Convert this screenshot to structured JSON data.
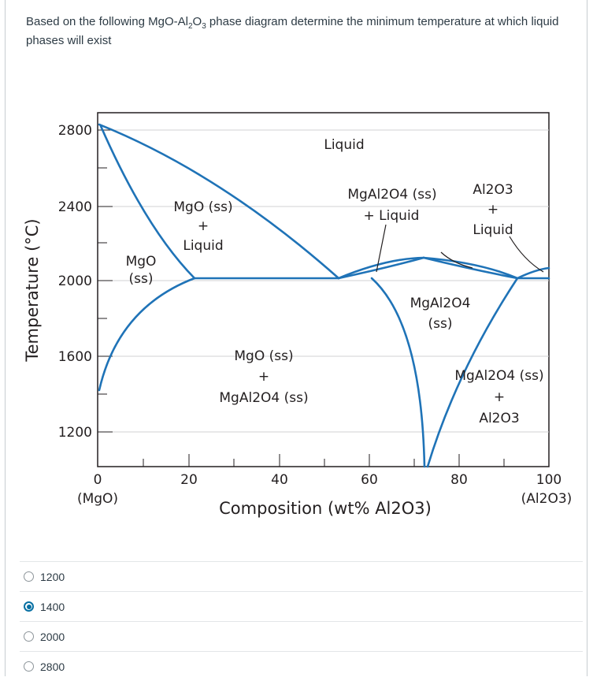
{
  "question": {
    "part1": "Based on the following MgO-Al",
    "sub1": "2",
    "part2": "O",
    "sub2": "3",
    "part3": " phase diagram determine the minimum temperature at which liquid phases will exist"
  },
  "chart_data": {
    "type": "phase-diagram",
    "ylabel": "Temperature (°C)",
    "xlabel": "Composition (wt% Al2O3)",
    "x_ticks": [
      "0",
      "20",
      "40",
      "60",
      "80",
      "100"
    ],
    "x_end_labels": {
      "left": "(MgO)",
      "right": "(Al2O3)"
    },
    "y_ticks": [
      "2800",
      "2400",
      "2000",
      "1600",
      "1200"
    ],
    "xlim": [
      0,
      100
    ],
    "ylim": [
      1000,
      2850
    ],
    "regions": {
      "liquid": "Liquid",
      "mgo_ss": [
        "MgO",
        "(ss)"
      ],
      "mgo_liquid": [
        "MgO (ss)",
        "+",
        "Liquid"
      ],
      "spinel_liquid": [
        "MgAl2O4 (ss)",
        "+ Liquid"
      ],
      "alumina_liquid": [
        "Al2O3",
        "+",
        "Liquid"
      ],
      "mgo_spinel": [
        "MgO (ss)",
        "+",
        "MgAl2O4 (ss)"
      ],
      "spinel_ss": [
        "MgAl2O4",
        "(ss)"
      ],
      "spinel_alumina": [
        "MgAl2O4 (ss)",
        "+",
        "Al2O3"
      ]
    },
    "key_points": {
      "mgo_melting": [
        0,
        2800
      ],
      "eutectic_left": [
        55,
        2000
      ],
      "spinel_congruent_max": [
        73,
        2100
      ],
      "eutectic_right": [
        93,
        2000
      ]
    }
  },
  "answers": [
    {
      "label": "1200",
      "selected": false
    },
    {
      "label": "1400",
      "selected": true
    },
    {
      "label": "2000",
      "selected": false
    },
    {
      "label": "2800",
      "selected": false
    }
  ]
}
